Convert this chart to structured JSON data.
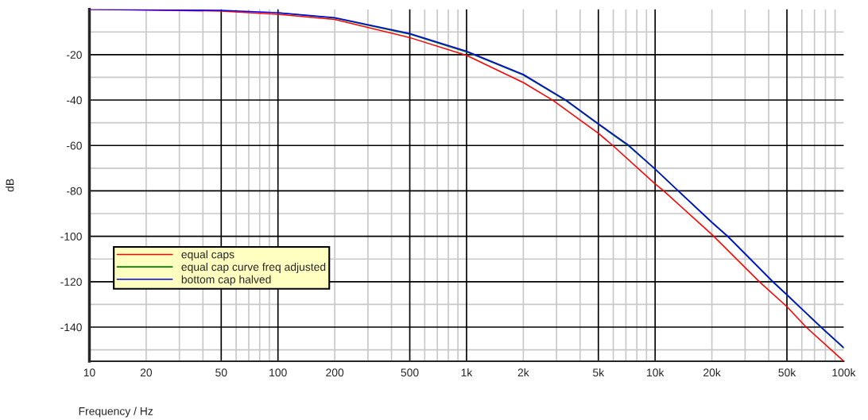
{
  "chart_data": {
    "type": "line",
    "xlabel": "Frequency / Hz",
    "ylabel": "dB",
    "log": "x",
    "xlim": [
      10,
      100000
    ],
    "ylim": [
      -155,
      0
    ],
    "xticks": [
      10,
      20,
      50,
      100,
      200,
      500,
      {
        "value": 1000,
        "label": "1k"
      },
      {
        "value": 2000,
        "label": "2k"
      },
      {
        "value": 5000,
        "label": "5k"
      },
      {
        "value": 10000,
        "label": "10k"
      },
      {
        "value": 20000,
        "label": "20k"
      },
      {
        "value": 50000,
        "label": "50k"
      },
      {
        "value": 100000,
        "label": "100k"
      }
    ],
    "yticks": [
      -20,
      -40,
      -60,
      -80,
      -100,
      -120,
      -140
    ],
    "grid": true,
    "legend": "left",
    "line_style": "solid",
    "marker": "none",
    "series": [
      {
        "name": "equal caps",
        "color": "#ff0000",
        "x": [
          10,
          50,
          100,
          200,
          500,
          1000,
          2000,
          2860,
          5000,
          5960,
          10000,
          11100,
          20000,
          35700,
          50000,
          63200,
          100000
        ],
        "values": [
          0,
          -0.8,
          -2.2,
          -4.5,
          -12.5,
          -20.3,
          -32.3,
          -40,
          -54.6,
          -60,
          -76.9,
          -80,
          -99.2,
          -120,
          -131,
          -140,
          -155
        ]
      },
      {
        "name": "equal cap curve freq adjusted",
        "color": "#008000",
        "x": [
          100,
          200,
          500,
          1000,
          2000,
          3370,
          5000,
          7260,
          10000,
          13300,
          20000,
          24300,
          42200,
          50000,
          76000,
          100000
        ],
        "values": [
          -1.6,
          -3.9,
          -11.0,
          -18.8,
          -29.0,
          -40.3,
          -50.7,
          -60.3,
          -70.5,
          -80.2,
          -94.0,
          -100.2,
          -120.2,
          -125.9,
          -140.2,
          -149.2
        ]
      },
      {
        "name": "bottom cap halved",
        "color": "#0000ff",
        "x": [
          10,
          50,
          100,
          200,
          500,
          1000,
          2000,
          3370,
          5000,
          7260,
          10000,
          13300,
          20000,
          24300,
          42200,
          50000,
          76000,
          100000
        ],
        "values": [
          0,
          -0.5,
          -1.5,
          -3.7,
          -10.7,
          -18.5,
          -28.7,
          -40,
          -50.4,
          -60,
          -70.3,
          -80,
          -93.8,
          -100,
          -120,
          -125.7,
          -140,
          -149
        ]
      }
    ]
  }
}
